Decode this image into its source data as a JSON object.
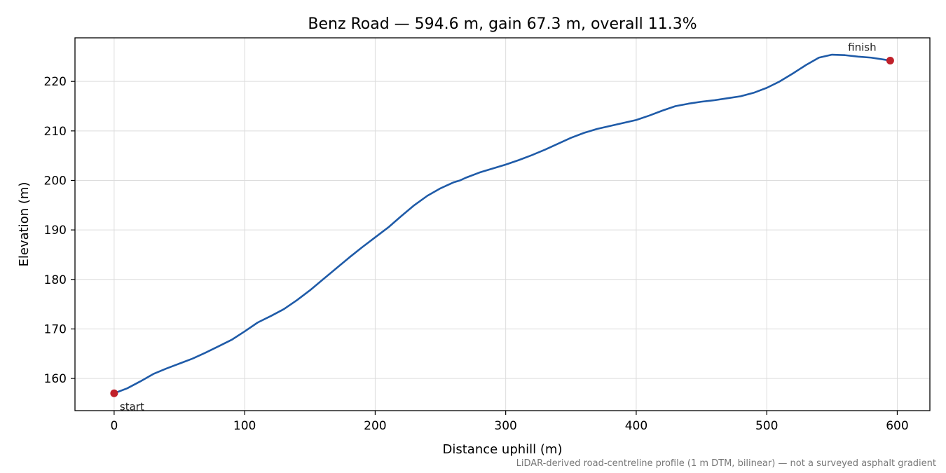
{
  "chart_data": {
    "type": "line",
    "title": "Benz Road — 594.6 m, gain 67.3 m, overall 11.3%",
    "xlabel": "Distance uphill (m)",
    "ylabel": "Elevation (m)",
    "xlim": [
      -30,
      625
    ],
    "ylim": [
      153.5,
      228.8
    ],
    "xticks": [
      0,
      100,
      200,
      300,
      400,
      500,
      600
    ],
    "yticks": [
      160,
      170,
      180,
      190,
      200,
      210,
      220
    ],
    "grid": true,
    "line_color": "#1f5ba8",
    "marker_color": "#c0202a",
    "series": [
      {
        "x": [
          0,
          10,
          20,
          30,
          40,
          50,
          60,
          70,
          80,
          90,
          100,
          110,
          120,
          130,
          140,
          150,
          160,
          170,
          180,
          190,
          200,
          210,
          220,
          230,
          240,
          250,
          260,
          265,
          270,
          280,
          290,
          300,
          310,
          320,
          330,
          340,
          350,
          360,
          370,
          380,
          390,
          400,
          410,
          420,
          430,
          440,
          450,
          460,
          470,
          480,
          490,
          500,
          510,
          520,
          530,
          540,
          550,
          560,
          570,
          580,
          590,
          594.6
        ],
        "y": [
          157.0,
          158.0,
          159.4,
          160.9,
          162.0,
          163.0,
          164.0,
          165.2,
          166.5,
          167.8,
          169.5,
          171.3,
          172.6,
          174.0,
          175.8,
          177.8,
          180.0,
          182.2,
          184.4,
          186.5,
          188.5,
          190.5,
          192.8,
          195.0,
          196.9,
          198.4,
          199.6,
          200.0,
          200.6,
          201.6,
          202.4,
          203.2,
          204.1,
          205.1,
          206.2,
          207.4,
          208.6,
          209.6,
          210.4,
          211.0,
          211.6,
          212.2,
          213.1,
          214.1,
          215.0,
          215.5,
          215.9,
          216.2,
          216.6,
          217.0,
          217.7,
          218.7,
          220.0,
          221.6,
          223.3,
          224.8,
          225.4,
          225.3,
          225.0,
          224.8,
          224.4,
          224.2
        ]
      }
    ],
    "annotations": [
      {
        "text": "start",
        "x": 0,
        "y": 157.0
      },
      {
        "text": "finish",
        "x": 594.6,
        "y": 224.2
      }
    ],
    "footnote": "LiDAR-derived road-centreline profile (1 m DTM, bilinear) — not a surveyed asphalt gradient"
  }
}
